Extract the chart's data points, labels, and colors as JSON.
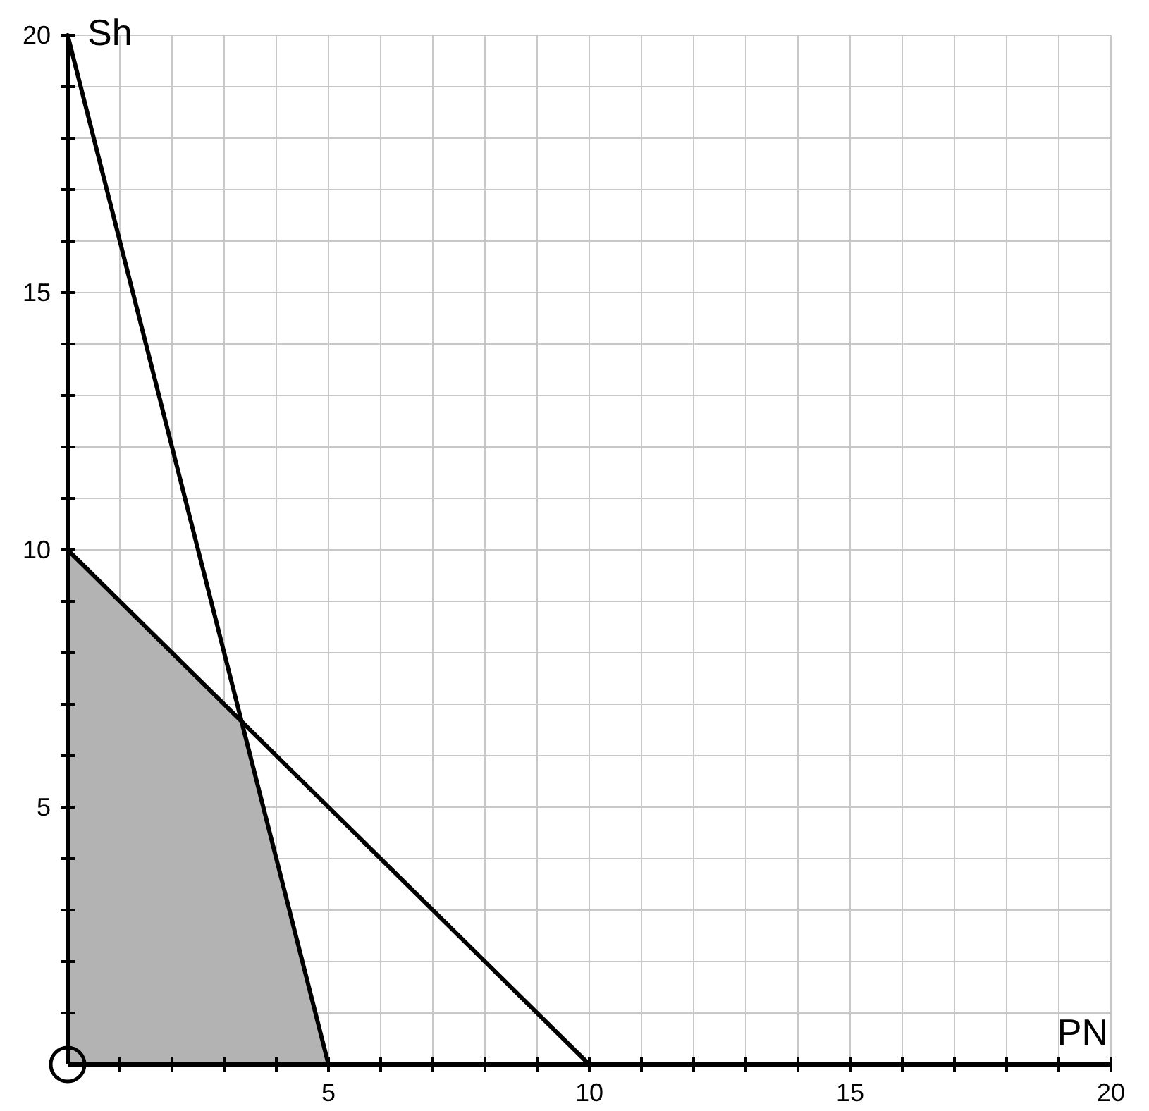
{
  "chart_data": {
    "type": "line",
    "xlabel": "PN",
    "ylabel": "Sh",
    "xlim": [
      0,
      20
    ],
    "ylim": [
      0,
      20
    ],
    "xticks": [
      {
        "value": 1,
        "label": null
      },
      {
        "value": 2,
        "label": null
      },
      {
        "value": 3,
        "label": null
      },
      {
        "value": 4,
        "label": null
      },
      5,
      {
        "value": 6,
        "label": null
      },
      {
        "value": 7,
        "label": null
      },
      {
        "value": 8,
        "label": null
      },
      {
        "value": 9,
        "label": null
      },
      10,
      {
        "value": 11,
        "label": null
      },
      {
        "value": 12,
        "label": null
      },
      {
        "value": 13,
        "label": null
      },
      {
        "value": 14,
        "label": null
      },
      15,
      {
        "value": 16,
        "label": null
      },
      {
        "value": 17,
        "label": null
      },
      {
        "value": 18,
        "label": null
      },
      {
        "value": 19,
        "label": null
      },
      20
    ],
    "yticks": [
      {
        "value": 1,
        "label": null
      },
      {
        "value": 2,
        "label": null
      },
      {
        "value": 3,
        "label": null
      },
      {
        "value": 4,
        "label": null
      },
      5,
      {
        "value": 6,
        "label": null
      },
      {
        "value": 7,
        "label": null
      },
      {
        "value": 8,
        "label": null
      },
      {
        "value": 9,
        "label": null
      },
      10,
      {
        "value": 11,
        "label": null
      },
      {
        "value": 12,
        "label": null
      },
      {
        "value": 13,
        "label": null
      },
      {
        "value": 14,
        "label": null
      },
      15,
      {
        "value": 16,
        "label": null
      },
      {
        "value": 17,
        "label": null
      },
      {
        "value": 18,
        "label": null
      },
      {
        "value": 19,
        "label": null
      },
      20
    ],
    "grid": true,
    "series": [
      {
        "type": "area",
        "color": "#b3b3b3",
        "x": [
          0,
          3.33,
          5
        ],
        "values": [
          10,
          6.67,
          0
        ]
      },
      {
        "color": "#000000",
        "x": [
          0,
          5
        ],
        "values": [
          20,
          0
        ]
      },
      {
        "color": "#000000",
        "x": [
          0,
          10
        ],
        "values": [
          10,
          0
        ]
      }
    ]
  }
}
